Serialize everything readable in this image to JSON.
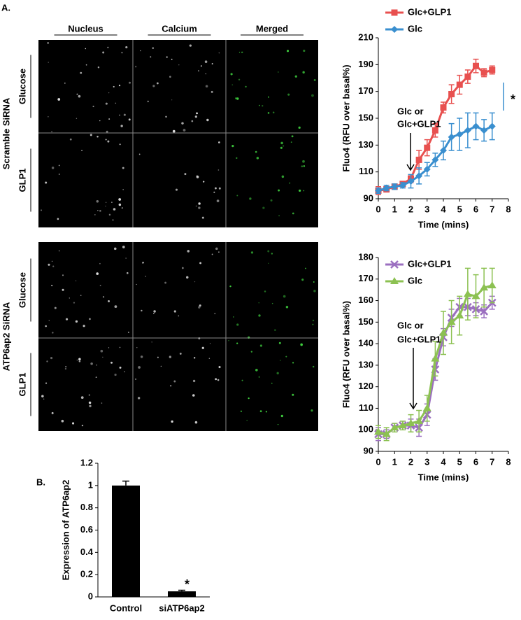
{
  "figure": {
    "panel_a": "A.",
    "panel_b": "B.",
    "columns": [
      "Nucleus",
      "Calcium",
      "Merged"
    ],
    "groups": [
      {
        "label": "Scramble SiRNA",
        "rows": [
          "Glucose",
          "GLP1"
        ]
      },
      {
        "label": "ATP6ap2 SiRNA",
        "rows": [
          "Glucose",
          "GLP1"
        ]
      }
    ]
  },
  "chart_data": [
    {
      "type": "line",
      "x_label": "Time (mins)",
      "y_label": "Fluo4 (RFU over basal%)",
      "annotations": [
        "Glc or",
        "Glc+GLP1",
        "*"
      ],
      "legend": "top",
      "x": [
        0,
        0.5,
        1,
        1.5,
        2,
        2.5,
        3,
        3.5,
        4,
        4.5,
        5,
        5.5,
        6,
        6.5,
        7
      ],
      "series": [
        {
          "name": "Glc+GLP1",
          "color": "#e8504f",
          "marker": "square",
          "values": [
            96,
            97,
            99,
            101,
            105,
            119,
            128,
            141,
            158,
            168,
            175,
            181,
            189,
            184,
            186
          ],
          "errors": [
            3,
            2,
            2,
            2,
            3,
            7,
            6,
            5,
            4,
            7,
            7,
            5,
            5,
            3,
            3
          ]
        },
        {
          "name": "Glc",
          "color": "#3a8fcf",
          "marker": "diamond",
          "values": [
            96,
            98,
            99,
            100,
            103,
            107,
            112,
            119,
            126,
            136,
            138,
            141,
            144,
            141,
            144
          ],
          "errors": [
            2,
            2,
            2,
            2,
            5,
            6,
            5,
            5,
            7,
            10,
            12,
            13,
            10,
            8,
            10
          ]
        }
      ],
      "xlim": [
        0,
        8
      ],
      "xticks": [
        0,
        1,
        2,
        3,
        4,
        5,
        6,
        7,
        8
      ],
      "ylim": [
        90,
        210
      ],
      "yticks": [
        90,
        110,
        130,
        150,
        170,
        190,
        210
      ]
    },
    {
      "type": "line",
      "x_label": "Time (mins)",
      "y_label": "Fluo4 (RFU over basal%)",
      "annotations": [
        "Glc or",
        "Glc+GLP1"
      ],
      "legend": "upper left",
      "x": [
        0,
        0.5,
        1,
        1.5,
        2,
        2.5,
        3,
        3.5,
        4,
        4.5,
        5,
        5.5,
        6,
        6.5,
        7
      ],
      "series": [
        {
          "name": "Glc+GLP1",
          "color": "#9b6fc0",
          "marker": "x",
          "values": [
            98,
            98,
            101,
            102,
            102,
            101,
            107,
            128,
            143,
            152,
            157,
            157,
            156,
            155,
            159
          ],
          "errors": [
            3,
            2,
            2,
            2,
            3,
            4,
            5,
            5,
            4,
            4,
            4,
            4,
            3,
            3,
            3
          ]
        },
        {
          "name": "Glc",
          "color": "#8cc152",
          "marker": "triangle",
          "values": [
            99,
            98,
            101,
            102,
            103,
            104,
            110,
            133,
            145,
            150,
            153,
            163,
            162,
            166,
            167
          ],
          "errors": [
            3,
            3,
            2,
            2,
            4,
            5,
            6,
            8,
            10,
            10,
            9,
            12,
            10,
            9,
            8
          ]
        }
      ],
      "xlim": [
        0,
        8
      ],
      "xticks": [
        0,
        1,
        2,
        3,
        4,
        5,
        6,
        7,
        8
      ],
      "ylim": [
        90,
        180
      ],
      "yticks": [
        90,
        100,
        110,
        120,
        130,
        140,
        150,
        160,
        170,
        180
      ]
    },
    {
      "type": "bar",
      "y_label": "Expression of ATP6ap2",
      "annotations": [
        "*"
      ],
      "categories": [
        "Control",
        "siATP6ap2"
      ],
      "values": [
        1,
        0.05
      ],
      "errors": [
        0.04,
        0.01
      ],
      "color": "#000000",
      "ylim": [
        0,
        1.2
      ],
      "yticks": [
        0,
        0.2,
        0.4,
        0.6,
        0.8,
        1,
        1.2
      ]
    }
  ]
}
